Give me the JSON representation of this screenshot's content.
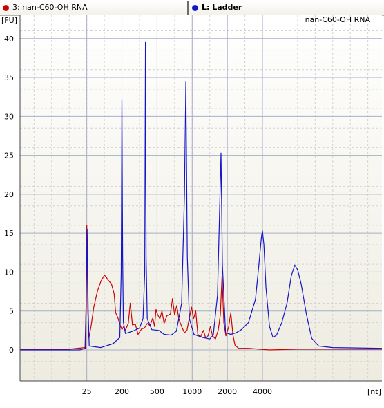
{
  "tabs": [
    {
      "label": "3: nan-C60-OH RNA",
      "color": "#cc0000",
      "bold": false
    },
    {
      "label": "L: Ladder",
      "color": "#1414c8",
      "bold": true
    }
  ],
  "chart_data": {
    "type": "line",
    "title": "nan-C60-OH RNA",
    "ylabel": "[FU]",
    "xlabel": "[nt]",
    "ylim": [
      -4,
      43
    ],
    "y_ticks": [
      0,
      5,
      10,
      15,
      20,
      25,
      30,
      35,
      40
    ],
    "x_ticks": [
      {
        "label": "25",
        "t": 0
      },
      {
        "label": "200",
        "t": 1
      },
      {
        "label": "500",
        "t": 2
      },
      {
        "label": "1000",
        "t": 3
      },
      {
        "label": "2000",
        "t": 4
      },
      {
        "label": "4000",
        "t": 5
      }
    ],
    "x_axis_t_range": [
      -1.9,
      8.4
    ],
    "grid": true,
    "series": [
      {
        "name": "3: nan-C60-OH RNA",
        "color": "#cc0000",
        "points": [
          [
            -1.9,
            0.1
          ],
          [
            -0.5,
            0.1
          ],
          [
            -0.05,
            0.3
          ],
          [
            -0.02,
            5.5
          ],
          [
            0.0,
            16.0
          ],
          [
            0.03,
            5.0
          ],
          [
            0.06,
            1.5
          ],
          [
            0.12,
            3.0
          ],
          [
            0.2,
            5.5
          ],
          [
            0.3,
            7.5
          ],
          [
            0.4,
            8.8
          ],
          [
            0.5,
            9.6
          ],
          [
            0.55,
            9.4
          ],
          [
            0.6,
            9.0
          ],
          [
            0.7,
            8.5
          ],
          [
            0.78,
            7.2
          ],
          [
            0.82,
            4.8
          ],
          [
            0.88,
            4.2
          ],
          [
            0.94,
            3.3
          ],
          [
            1.0,
            2.6
          ],
          [
            1.05,
            3.0
          ],
          [
            1.1,
            2.5
          ],
          [
            1.18,
            3.4
          ],
          [
            1.24,
            6.0
          ],
          [
            1.3,
            3.2
          ],
          [
            1.38,
            3.3
          ],
          [
            1.46,
            2.0
          ],
          [
            1.56,
            2.7
          ],
          [
            1.64,
            2.8
          ],
          [
            1.72,
            3.4
          ],
          [
            1.8,
            3.1
          ],
          [
            1.88,
            4.1
          ],
          [
            1.93,
            3.0
          ],
          [
            1.97,
            5.2
          ],
          [
            2.02,
            4.5
          ],
          [
            2.08,
            4.0
          ],
          [
            2.14,
            5.0
          ],
          [
            2.2,
            3.4
          ],
          [
            2.28,
            4.4
          ],
          [
            2.38,
            4.6
          ],
          [
            2.44,
            6.6
          ],
          [
            2.5,
            4.5
          ],
          [
            2.56,
            5.7
          ],
          [
            2.62,
            4.0
          ],
          [
            2.7,
            3.0
          ],
          [
            2.78,
            2.2
          ],
          [
            2.85,
            2.5
          ],
          [
            2.92,
            4.1
          ],
          [
            2.98,
            5.5
          ],
          [
            3.04,
            4.0
          ],
          [
            3.1,
            5.0
          ],
          [
            3.16,
            2.0
          ],
          [
            3.24,
            1.7
          ],
          [
            3.32,
            2.5
          ],
          [
            3.38,
            1.6
          ],
          [
            3.45,
            1.8
          ],
          [
            3.52,
            3.0
          ],
          [
            3.58,
            1.8
          ],
          [
            3.66,
            1.4
          ],
          [
            3.74,
            2.5
          ],
          [
            3.8,
            4.5
          ],
          [
            3.85,
            9.5
          ],
          [
            3.9,
            3.5
          ],
          [
            3.96,
            1.8
          ],
          [
            4.04,
            3.0
          ],
          [
            4.1,
            4.8
          ],
          [
            4.16,
            1.9
          ],
          [
            4.22,
            0.6
          ],
          [
            4.32,
            0.2
          ],
          [
            4.6,
            0.2
          ],
          [
            5.2,
            0.0
          ],
          [
            6.0,
            0.1
          ],
          [
            7.0,
            0.1
          ],
          [
            8.4,
            0.1
          ]
        ]
      },
      {
        "name": "L: Ladder",
        "color": "#1414c8",
        "points": [
          [
            -1.9,
            0.0
          ],
          [
            -0.2,
            0.0
          ],
          [
            -0.04,
            0.2
          ],
          [
            -0.02,
            5.0
          ],
          [
            0.01,
            15.5
          ],
          [
            0.04,
            5.0
          ],
          [
            0.07,
            0.5
          ],
          [
            0.4,
            0.3
          ],
          [
            0.75,
            0.8
          ],
          [
            0.94,
            1.6
          ],
          [
            0.98,
            10.0
          ],
          [
            1.0,
            32.2
          ],
          [
            1.02,
            12.0
          ],
          [
            1.04,
            3.6
          ],
          [
            1.1,
            2.1
          ],
          [
            1.3,
            2.4
          ],
          [
            1.5,
            2.8
          ],
          [
            1.6,
            4.0
          ],
          [
            1.65,
            10.0
          ],
          [
            1.67,
            39.5
          ],
          [
            1.69,
            12.0
          ],
          [
            1.72,
            4.0
          ],
          [
            1.85,
            2.6
          ],
          [
            2.05,
            2.5
          ],
          [
            2.2,
            2.0
          ],
          [
            2.4,
            1.9
          ],
          [
            2.55,
            2.4
          ],
          [
            2.7,
            6.0
          ],
          [
            2.78,
            20.0
          ],
          [
            2.82,
            34.5
          ],
          [
            2.86,
            12.0
          ],
          [
            2.92,
            4.0
          ],
          [
            3.05,
            2.0
          ],
          [
            3.3,
            1.6
          ],
          [
            3.5,
            1.4
          ],
          [
            3.6,
            1.9
          ],
          [
            3.72,
            7.0
          ],
          [
            3.78,
            18.0
          ],
          [
            3.82,
            25.3
          ],
          [
            3.86,
            11.0
          ],
          [
            3.95,
            2.2
          ],
          [
            4.1,
            2.0
          ],
          [
            4.25,
            2.2
          ],
          [
            4.4,
            2.6
          ],
          [
            4.6,
            3.5
          ],
          [
            4.8,
            6.5
          ],
          [
            4.9,
            11.0
          ],
          [
            4.97,
            14.5
          ],
          [
            5.0,
            15.3
          ],
          [
            5.04,
            13.5
          ],
          [
            5.1,
            8.0
          ],
          [
            5.2,
            3.0
          ],
          [
            5.3,
            1.6
          ],
          [
            5.4,
            1.9
          ],
          [
            5.55,
            3.5
          ],
          [
            5.7,
            6.0
          ],
          [
            5.82,
            9.5
          ],
          [
            5.92,
            10.9
          ],
          [
            6.0,
            10.3
          ],
          [
            6.1,
            8.5
          ],
          [
            6.25,
            4.6
          ],
          [
            6.4,
            1.5
          ],
          [
            6.6,
            0.5
          ],
          [
            7.0,
            0.3
          ],
          [
            8.4,
            0.2
          ]
        ]
      }
    ]
  }
}
